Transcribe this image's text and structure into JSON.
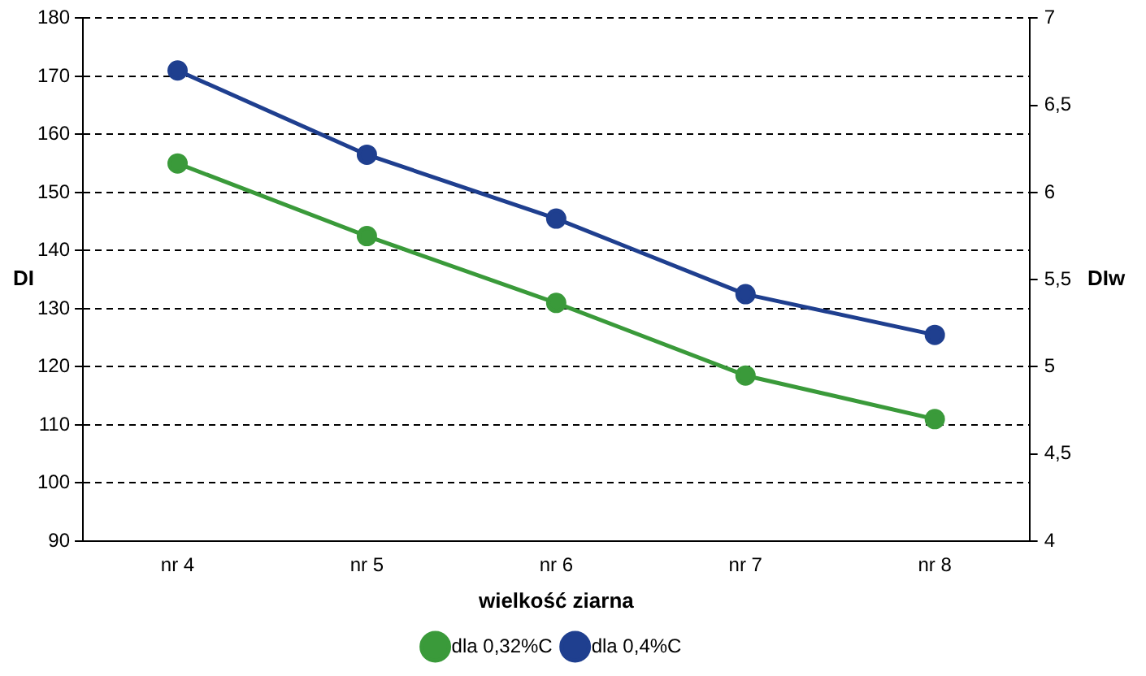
{
  "chart_data": {
    "type": "line",
    "xlabel": "wielkość ziarna",
    "ylabel": "DI",
    "y2label": "DIw",
    "categories": [
      "nr 4",
      "nr 5",
      "nr 6",
      "nr 7",
      "nr 8"
    ],
    "series": [
      {
        "name": "dla 0,32%C",
        "color": "#3a9a3a",
        "values": [
          155,
          142.5,
          131,
          118.5,
          111
        ]
      },
      {
        "name": "dla 0,4%C",
        "color": "#1f3f8f",
        "values": [
          171,
          156.5,
          145.5,
          132.5,
          125.5
        ]
      }
    ],
    "ylim": [
      90,
      180
    ],
    "yticks": [
      90,
      100,
      110,
      120,
      130,
      140,
      150,
      160,
      170,
      180
    ],
    "y2lim": [
      4,
      7
    ],
    "y2ticks": [
      4,
      {
        "value": 4.5,
        "label": "4,5"
      },
      5,
      {
        "value": 5.5,
        "label": "5,5"
      },
      6,
      {
        "value": 6.5,
        "label": "6,5"
      },
      7
    ],
    "grid": "y",
    "legend": "bottom",
    "marker": "circle",
    "line_style": "solid"
  }
}
